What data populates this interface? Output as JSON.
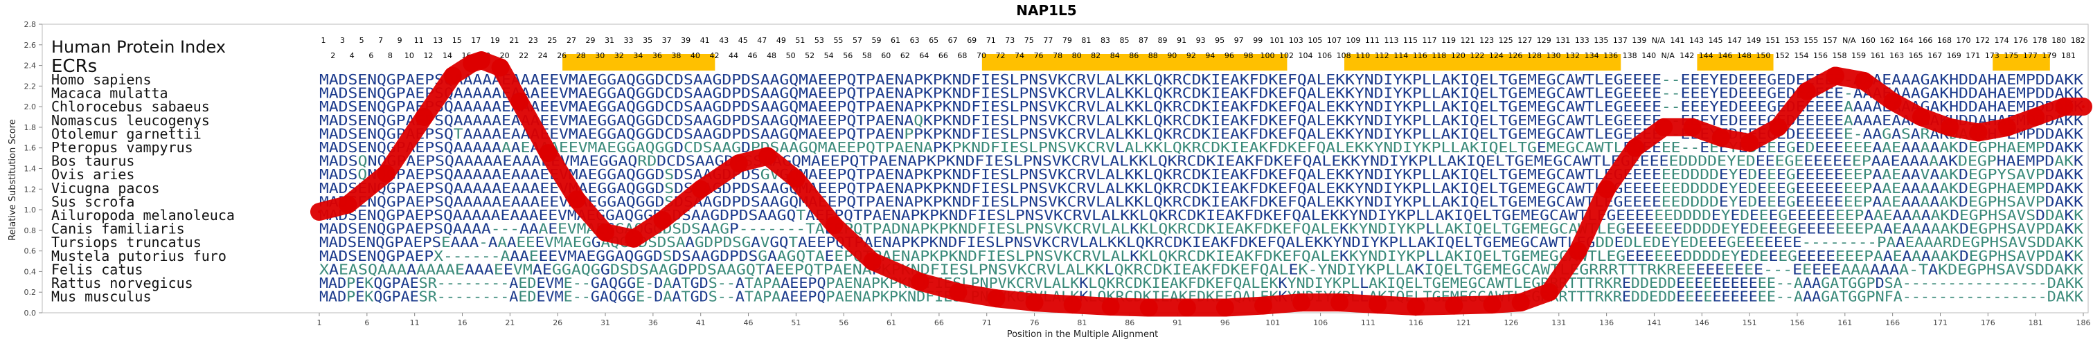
{
  "chart_data": {
    "type": "line",
    "title": "NAP1L5",
    "xlabel": "Position in the Multiple Alignment",
    "ylabel": "Relative Substitution Score",
    "xlim": [
      1,
      186
    ],
    "ylim": [
      0,
      2.8
    ],
    "x_ticks": [
      1,
      6,
      11,
      16,
      21,
      26,
      31,
      36,
      41,
      46,
      51,
      56,
      61,
      66,
      71,
      76,
      81,
      86,
      91,
      96,
      101,
      106,
      111,
      116,
      121,
      126,
      131,
      136,
      141,
      146,
      151,
      156,
      161,
      166,
      171,
      176,
      181,
      186
    ],
    "y_ticks": [
      0.0,
      0.2,
      0.4,
      0.6,
      0.8,
      1.0,
      1.2,
      1.4,
      1.6,
      1.8,
      2.0,
      2.2,
      2.4,
      2.6,
      2.8
    ],
    "human_index_label": "Human Protein Index",
    "ecr_label": "ECRs",
    "human_index_top": [
      "1",
      "3",
      "5",
      "7",
      "9",
      "11",
      "13",
      "15",
      "17",
      "19",
      "21",
      "23",
      "25",
      "27",
      "29",
      "31",
      "33",
      "35",
      "37",
      "39",
      "41",
      "43",
      "45",
      "47",
      "49",
      "51",
      "53",
      "55",
      "57",
      "59",
      "61",
      "63",
      "65",
      "67",
      "69",
      "71",
      "73",
      "75",
      "77",
      "79",
      "81",
      "83",
      "85",
      "87",
      "89",
      "91",
      "93",
      "95",
      "97",
      "99",
      "101",
      "103",
      "105",
      "107",
      "109",
      "111",
      "113",
      "115",
      "117",
      "119",
      "121",
      "123",
      "125",
      "127",
      "129",
      "131",
      "133",
      "135",
      "137",
      "139",
      "N/A",
      "141",
      "143",
      "145",
      "147",
      "149",
      "151",
      "153",
      "155",
      "157",
      "N/A",
      "160",
      "162",
      "164",
      "166",
      "168",
      "170",
      "172",
      "174",
      "176",
      "178",
      "180",
      "182"
    ],
    "human_index_bottom": [
      "2",
      "4",
      "6",
      "8",
      "10",
      "12",
      "14",
      "16",
      "18",
      "20",
      "22",
      "24",
      "26",
      "28",
      "30",
      "32",
      "34",
      "36",
      "38",
      "40",
      "42",
      "44",
      "46",
      "48",
      "50",
      "52",
      "54",
      "56",
      "58",
      "60",
      "62",
      "64",
      "66",
      "68",
      "70",
      "72",
      "74",
      "76",
      "78",
      "80",
      "82",
      "84",
      "86",
      "88",
      "90",
      "92",
      "94",
      "96",
      "98",
      "100",
      "102",
      "104",
      "106",
      "108",
      "110",
      "112",
      "114",
      "116",
      "118",
      "120",
      "122",
      "124",
      "126",
      "128",
      "130",
      "132",
      "134",
      "136",
      "138",
      "140",
      "N/A",
      "142",
      "144",
      "146",
      "148",
      "150",
      "152",
      "154",
      "156",
      "158",
      "159",
      "161",
      "163",
      "165",
      "167",
      "169",
      "171",
      "173",
      "175",
      "177",
      "179",
      "181"
    ],
    "ecr_regions": [
      [
        27,
        42
      ],
      [
        71,
        102
      ],
      [
        109,
        137
      ],
      [
        146,
        153
      ],
      [
        177,
        182
      ]
    ],
    "series": [
      {
        "color": "#dd0000",
        "x": [
          1,
          4,
          8,
          12,
          15,
          17,
          18,
          20,
          22,
          25,
          28,
          31,
          34,
          37,
          41,
          45,
          48,
          51,
          55,
          59,
          64,
          68,
          72,
          76,
          80,
          84,
          88,
          92,
          96,
          100,
          104,
          108,
          112,
          116,
          120,
          124,
          127,
          130,
          133,
          136,
          139,
          142,
          145,
          148,
          151,
          154,
          157,
          160,
          163,
          166,
          169,
          172,
          175,
          178,
          181,
          184,
          186
        ],
        "y": [
          0.98,
          1.05,
          1.35,
          1.9,
          2.3,
          2.42,
          2.45,
          2.38,
          2.05,
          1.55,
          1.1,
          0.78,
          0.72,
          0.9,
          1.2,
          1.45,
          1.52,
          1.3,
          0.85,
          0.5,
          0.3,
          0.2,
          0.14,
          0.1,
          0.08,
          0.06,
          0.05,
          0.05,
          0.05,
          0.07,
          0.1,
          0.1,
          0.08,
          0.06,
          0.07,
          0.08,
          0.1,
          0.2,
          0.6,
          1.2,
          1.6,
          1.8,
          1.8,
          1.7,
          1.65,
          1.8,
          2.15,
          2.3,
          2.25,
          2.05,
          1.9,
          1.8,
          1.75,
          1.8,
          1.9,
          2.0,
          2.0
        ]
      }
    ],
    "species": [
      {
        "name": "Homo sapiens",
        "seq": "MADSENQGPAEPSQAAAAAEAAAEEVMAEGGAQGGDCDSAAGDPDSAAGQMAEEPQTPAENAPKPKNDFIESLPNSVKCRVLALKKLQKRCDKIEAKFDKEFQALEKKYNDIYKPLLAKIQELTGEMEGCAWTLEGEEEE--EEEYEDEEEGEDEEEEE-AAAEAAAGAKHDDAHAEMPDDAKK"
      },
      {
        "name": "Macaca mulatta",
        "seq": "MADSENQGPAEPSQAAAAAEAAAEEVMAEGGAQGGDCDSAAGDPDSAAGQMAEEPQTPAENAPKPKNDFIESLPNSVKCRVLALKKLQKRCDKIEAKFDKEFQALEKKYNDIYKPLLAKIQELTGEMEGCAWTLEGEEEE--EEEYEDEEEGEDEEEEE-AAAEAAAGAKHDDAHAEMPDDAKK"
      },
      {
        "name": "Chlorocebus sabaeus",
        "seq": "MADSENQGPAEPSQAAAAAEAAAEEVMAEGGAQGGDCDSAAGDPDSAAGQMAEEPQTPAENAPKPKNDFIESLPNSVKCRVLALKKLQKRCDKIEAKFDKEFQALEKKYNDIYKPLLAKIQELTGEMEGCAWTLEGEEEE--EEEYEDEEEGEDEEEEEAAAAEAAAGAKHDDAHAEMPDDAKK"
      },
      {
        "name": "Nomascus leucogenys",
        "seq": "MADSENQGPAEPSQAAAAAEAAAEEVMAEGGAQGGDCDSAAGDPDSAAGQMAEEPQTPAENAQKPKNDFIESLPNSVKCRVLALKKLQKRCDKIEAKFDKEFQALEKKYNDIYKPLLAKIQELTGEMEGCAWTLEGEEEE--EEEYEDEEEGEDEEEEEAAAAEAAAGAKHDDAHAEMPDDAKK"
      },
      {
        "name": "Otolemur garnettii",
        "seq": "MADSENQGPAEPSQTAAAAEAAAEEVMAEGGAQGGDCDSAAGDPDSAAGQMAEEPQTPAENPPKPKNDFIESLPNSVKCRVLALKKLQKRCDKIEAKFDKEFQALEKKYNDIYKPLLAKIQELTGEMEGCAWTLEGEEEE--EEEYEDEEEGEDEEEEEE-AAGASARAKDAGAH-EMPDDAKK"
      },
      {
        "name": "Pteropus vampyrus",
        "seq": "MADSENQGPAEPSQAAAAAAAEAAAEEVMAEGGAQGGDCDSAAGDPDSAAGQMAEEPQTPAENAPKPKNDFIESLPNSVKCRVLALKKLQKRCDKIEAKFDKEFQALEKKYNDIYKPLLAKIQELTGEMEGCAWTLEGEEEE--EEEYEDEEEGEDEEEEEEAAEAAAAAKDEGPHAEMPDAKK"
      },
      {
        "name": "Bos taurus",
        "seq": "MADSQNQGPAEPSQAAAAAEAAAEEVMAEGGAQRDDCDSAAGDPSSAAGQMAEEPQTPAENAPKPKNDFIESLPNSVKCRVLALKKLQKRCDKIEAKFDKEFQALEKKYNDIYKPLLAKIQELTGEMEGCAWTLEGEEEEEDDDDEYEDEEEGEEEEEEEPAAEAAAAAKDEGPHAEMPDAKK"
      },
      {
        "name": "Ovis aries",
        "seq": "MADSQNQGPAEPSQAAAAAEAAAEEVMAEGGAQGGDSDSAAGDPDSGVGQMAEEPQTPAENAPKPKNDFIESLPNSVKCRVLALKKLQKRCDKIEAKFDKEFQALEKKYNDIYKPLLAKIQELTGEMEGCAWTLEGEEEEEEDDDDEYEDEEEGEEEEEEEPAAEAAVAAKDEGPYSAVPDAKK"
      },
      {
        "name": "Vicugna pacos",
        "seq": "MADSENQGPAEPSQAAAAAEAAAEEVMAEGGAQGGDSDSAAGDPDSAAGQMAEEPQTPAENAPKPKNDFIESLPNSVKCRVLALKKLQKRCDKIEAKFDKEFQALEKKYNDIYKPLLAKIQELTGEMEGCAWTLEGEEEEEEDDDDEYEDEEEGEEEEEEEPAAEAAAAAKDEGPHAEMPDAKK"
      },
      {
        "name": "Sus scrofa",
        "seq": "MADSENQGPAEPSQAAAAAEAAAEEVMAEGGAQGGDSDSAAGDPDSAAGQMAEEPQTPAENAPKPKNDFIESLPNSVKCRVLALKKLQKRCDKIEAKFDKEFQALEKKYNDIYKPLLAKIQELTGEMEGCAWTLEGEEEEEEDDDDEYEDEEEGEEEEEEEPAAEAAAAAKDEGPHSAVPDAKK"
      },
      {
        "name": "Ailuropoda melanoleuca",
        "seq": "MADSENQGPAEPSQAAAAAEAAAEEVMAEGGAQGGDSDSAAGDPDSAAGQTAEEPQTPAENAPKPKNDFIESLPNSVKCRVLALKKLQKRCDKIEAKFDKEFQALEKKYNDIYKPLLAKIQELTGEMEGCAWTLEGEEEEEEDDDDEYEDEEEGEEEEEEEPAAEAAAAAKDEGPHSAVSDDAKK"
      },
      {
        "name": "Canis familiaris",
        "seq": "MADSENQGPAEPSQAAAA---AAAEEVMAEGGAQGGDSDSAAGP-------TAEEPQTPADNAPKPKNDFIESLPNSVKCRVLALKKLQKRCDKIEAKFDKEFQALEKKYNDIYKPLLAKIQELTGEMEGCAWTLEGEEEEEEDDDDEYEDEEEGEEEEEEEPAAEAAAAAKDEGPHSAVPDAKK"
      },
      {
        "name": "Tursiops truncatus",
        "seq": "MADSENQGPAEPSEAAA-AAAEEEVMAEGGAQGGDSDSAAGDPDSGAVGQTAEEPQTPAENAPKPKNDFIESLPNSVKCRVLALKKLQKRCDKIEAKFDKEFQALEKKYNDIYKPLLAKIQELTGEMEGCAWTLEGDDEDLEDEYEDEEEGEEEEEEE--------PAAEAAARDEGPHSAVSDDAKK"
      },
      {
        "name": "Mustela putorius furo",
        "seq": "MADSENQGPAEPX------AAAEEEVMAEGGAQGGDSDSAAGDPDSGAAGQTAEEPQTPAENAPKPKNDFIESLPNSVKCRVLALKKLQKRCDKIEAKFDKEFQALEKKYNDIYKPLLAKIQELTGEMEGCAWTLEGEEEEEEDDDDEYEDEEEGEEEEEEEPAAEAAAAAKDEGPHSAVPDAKK"
      },
      {
        "name": "Felis catus",
        "seq": "XAEASQAAAAAAAAEAAAEEVMAEGGAQGGDSDSAAGDPDSAAGQTAEEPQTPAENAPKPKNDFIESLPNSVKCRVLALKKLQKRCDKIEAKFDKEFQALEK-YNDIYKPLLAKIQELTGEMEGCAWTLEGRRRTTTRKREEEEEEEEE---EEEEEAAAAAAA-TAKDEGPHSAVSDDAKK"
      },
      {
        "name": "Rattus norvegicus",
        "seq": "MADPEKQGPAESR--------AEDEVME--GAQGGE-DAATGDS--ATAPAAEEPQPAENAPKPKNDFIESLPNPVKCRVLALKKLQKRCDKIEAKFDKEFQALEKKYNDIYKPLLAKIQELTGEMEGCAWTLEGRRRTTTRKREDDEDDEEEEEEEEEEE--AAAGATGGPDSA----------------DAKK"
      },
      {
        "name": "Mus musculus",
        "seq": "MADPEKQGPAESR--------AEDEVME--GAQGGE-DAATGDS--ATAPAAEEPQPAENAPKPKNDFIESLPNPVKCRVLALKKLQKRCDKIEAKFDKEFQALEKKYNDIYKPLLAKIQELTGEMEGCAWTLEGRRRTTTRKREDDEDDEEEEEEEEEEE--AAAGATGGPNFA----------------DAKK"
      }
    ]
  },
  "colors": {
    "ecr": "#FFC000",
    "curve": "#dd0000",
    "conserved_residue": "#1b3a8c",
    "variable_residue": "#3a8a7a",
    "axis": "#888888"
  }
}
